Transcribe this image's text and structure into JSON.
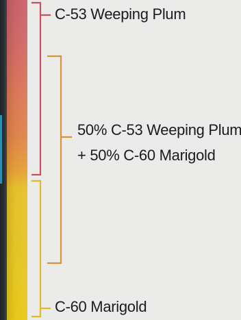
{
  "labels": {
    "top_color": "C-53 Weeping Plum",
    "mix_line_1": "50% C-53 Weeping Plum",
    "mix_line_2": "+ 50% C-60 Marigold",
    "bottom_color": "C-60 Marigold"
  },
  "bracket_colors": {
    "plum": "#c9505c",
    "mix": "#d9952e",
    "marigold": "#e0bd1e"
  },
  "swatch_colors": {
    "plum": "#c9606a",
    "marigold": "#e6c224"
  }
}
